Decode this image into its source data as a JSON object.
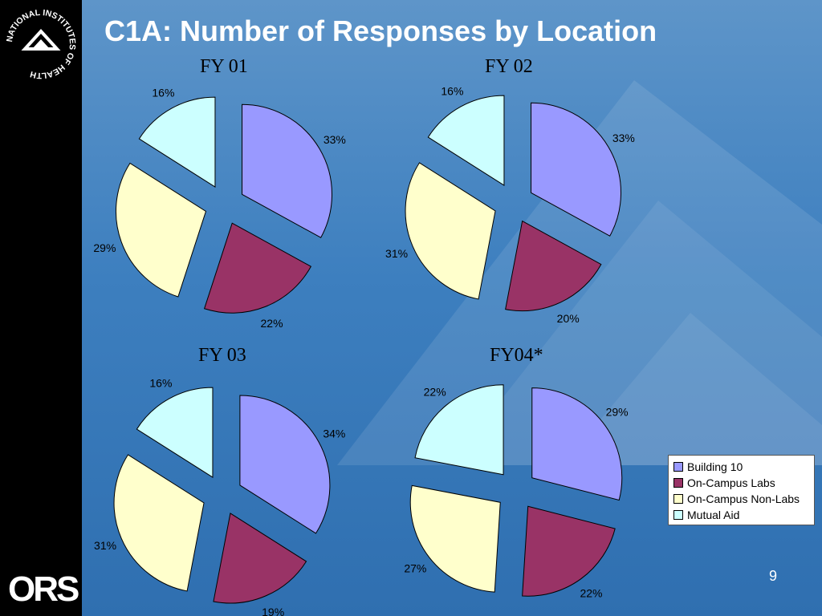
{
  "title": "C1A:  Number of Responses by Location",
  "page_number": "9",
  "logos": {
    "nih_text": "NATIONAL INSTITUTES OF HEALTH",
    "ors_text": "ORS"
  },
  "colors": {
    "building_10": "#9999ff",
    "on_campus_labs": "#993366",
    "on_campus_non_labs": "#ffffcc",
    "mutual_aid": "#ccffff"
  },
  "legend": {
    "items": [
      "Building 10",
      "On-Campus Labs",
      "On-Campus Non-Labs",
      "Mutual Aid"
    ]
  },
  "chart_data": [
    {
      "type": "pie",
      "title": "FY 01",
      "categories": [
        "Building 10",
        "On-Campus Labs",
        "On-Campus Non-Labs",
        "Mutual Aid"
      ],
      "values": [
        33,
        22,
        29,
        16
      ],
      "labels": [
        "33%",
        "22%",
        "29%",
        "16%"
      ]
    },
    {
      "type": "pie",
      "title": "FY 02",
      "categories": [
        "Building 10",
        "On-Campus Labs",
        "On-Campus Non-Labs",
        "Mutual Aid"
      ],
      "values": [
        33,
        20,
        31,
        16
      ],
      "labels": [
        "33%",
        "20%",
        "31%",
        "16%"
      ]
    },
    {
      "type": "pie",
      "title": "FY 03",
      "categories": [
        "Building 10",
        "On-Campus Labs",
        "On-Campus Non-Labs",
        "Mutual Aid"
      ],
      "values": [
        34,
        19,
        31,
        16
      ],
      "labels": [
        "34%",
        "19%",
        "31%",
        "16%"
      ]
    },
    {
      "type": "pie",
      "title": "FY04*",
      "categories": [
        "Building 10",
        "On-Campus Labs",
        "On-Campus Non-Labs",
        "Mutual Aid"
      ],
      "values": [
        29,
        22,
        27,
        22
      ],
      "labels": [
        "29%",
        "22%",
        "27%",
        "22%"
      ]
    }
  ]
}
